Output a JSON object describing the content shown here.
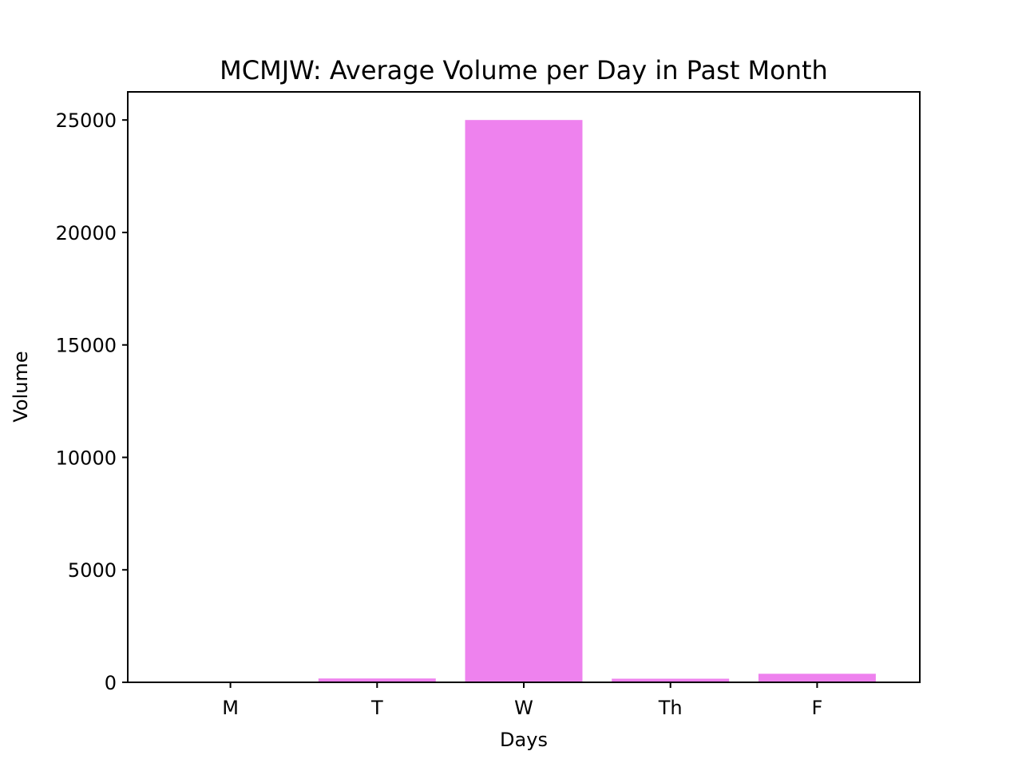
{
  "chart_data": {
    "type": "bar",
    "title": "MCMJW: Average Volume per Day in Past Month",
    "xlabel": "Days",
    "ylabel": "Volume",
    "categories": [
      "M",
      "T",
      "W",
      "Th",
      "F"
    ],
    "values": [
      10,
      170,
      25000,
      160,
      380
    ],
    "ylim": [
      0,
      26250
    ],
    "yticks": [
      0,
      5000,
      10000,
      15000,
      20000,
      25000
    ],
    "bar_color": "#ee82ee",
    "grid": false,
    "legend": "none"
  }
}
